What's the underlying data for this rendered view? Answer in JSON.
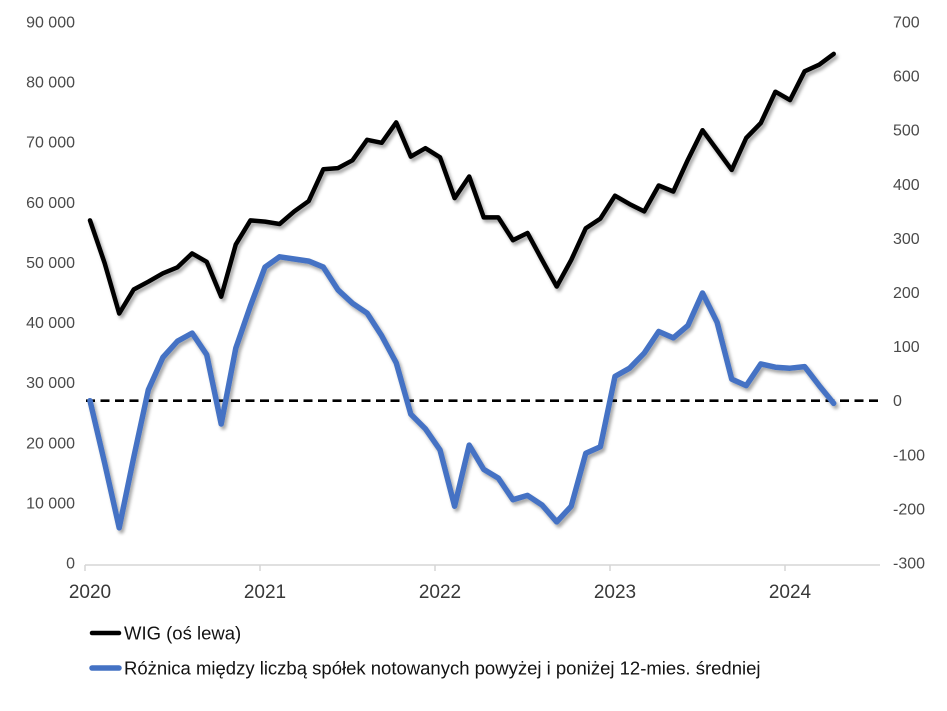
{
  "chart_data": {
    "type": "line",
    "title": "",
    "legend_position": "bottom-left",
    "x_axis": {
      "tick_labels": [
        "2020",
        "2021",
        "2022",
        "2023",
        "2024"
      ],
      "granularity": "monthly"
    },
    "left_axis": {
      "range": [
        0,
        90000
      ],
      "ticks": [
        {
          "label": "90 000",
          "value": 90000
        },
        {
          "label": "80 000",
          "value": 80000
        },
        {
          "label": "70 000",
          "value": 70000
        },
        {
          "label": "60 000",
          "value": 60000
        },
        {
          "label": "50 000",
          "value": 50000
        },
        {
          "label": "40 000",
          "value": 40000
        },
        {
          "label": "30 000",
          "value": 30000
        },
        {
          "label": "20 000",
          "value": 20000
        },
        {
          "label": "10 000",
          "value": 10000
        },
        {
          "label": "0",
          "value": 0
        }
      ]
    },
    "right_axis": {
      "range": [
        -300,
        700
      ],
      "ticks": [
        {
          "label": "700",
          "value": 700
        },
        {
          "label": "600",
          "value": 600
        },
        {
          "label": "500",
          "value": 500
        },
        {
          "label": "400",
          "value": 400
        },
        {
          "label": "300",
          "value": 300
        },
        {
          "label": "200",
          "value": 200
        },
        {
          "label": "100",
          "value": 100
        },
        {
          "label": "0",
          "value": 0
        },
        {
          "label": "-100",
          "value": -100
        },
        {
          "label": "-200",
          "value": -200
        },
        {
          "label": "-300",
          "value": -300
        }
      ]
    },
    "months": [
      "2020-01",
      "2020-02",
      "2020-03",
      "2020-04",
      "2020-05",
      "2020-06",
      "2020-07",
      "2020-08",
      "2020-09",
      "2020-10",
      "2020-11",
      "2020-12",
      "2021-01",
      "2021-02",
      "2021-03",
      "2021-04",
      "2021-05",
      "2021-06",
      "2021-07",
      "2021-08",
      "2021-09",
      "2021-10",
      "2021-11",
      "2021-12",
      "2022-01",
      "2022-02",
      "2022-03",
      "2022-04",
      "2022-05",
      "2022-06",
      "2022-07",
      "2022-08",
      "2022-09",
      "2022-10",
      "2022-11",
      "2022-12",
      "2023-01",
      "2023-02",
      "2023-03",
      "2023-04",
      "2023-05",
      "2023-06",
      "2023-07",
      "2023-08",
      "2023-09",
      "2023-10",
      "2023-11",
      "2023-12",
      "2024-01",
      "2024-02",
      "2024-03",
      "2024-04"
    ],
    "series": [
      {
        "name": "WIG (oś lewa)",
        "axis": "left",
        "color": "#000000",
        "values": [
          57000,
          49900,
          41500,
          45500,
          46800,
          48200,
          49200,
          51500,
          50100,
          44300,
          53000,
          57000,
          56800,
          56400,
          58500,
          60200,
          65500,
          65700,
          67000,
          70400,
          69900,
          73300,
          67600,
          69000,
          67500,
          60700,
          64300,
          57500,
          57500,
          53700,
          54900,
          50400,
          46000,
          50400,
          55700,
          57300,
          61100,
          59700,
          58500,
          62800,
          61800,
          67100,
          72000,
          68700,
          65400,
          70700,
          73200,
          78400,
          77000,
          81800,
          82900,
          84700
        ]
      },
      {
        "name": "Różnica między liczbą spółek notowanych powyżej i poniżej 12-mies. średniej",
        "axis": "right",
        "color": "#4472C4",
        "values": [
          0,
          -115,
          -235,
          -105,
          20,
          80,
          110,
          125,
          85,
          -43,
          97,
          175,
          247,
          266,
          262,
          258,
          247,
          205,
          180,
          162,
          120,
          70,
          -25,
          -52,
          -91,
          -195,
          -82,
          -127,
          -143,
          -183,
          -175,
          -193,
          -224,
          -195,
          -97,
          -85,
          45,
          60,
          88,
          128,
          116,
          139,
          199,
          145,
          40,
          28,
          68,
          62,
          60,
          63,
          28,
          -5
        ]
      }
    ],
    "zero_line": {
      "axis": "right",
      "value": 0,
      "style": "dashed",
      "color": "#000000"
    }
  },
  "legend": {
    "items": [
      {
        "label": "WIG (oś lewa)",
        "color": "#000000"
      },
      {
        "label": "Różnica między liczbą spółek notowanych powyżej i poniżej 12-mies. średniej",
        "color": "#4472C4"
      }
    ]
  }
}
